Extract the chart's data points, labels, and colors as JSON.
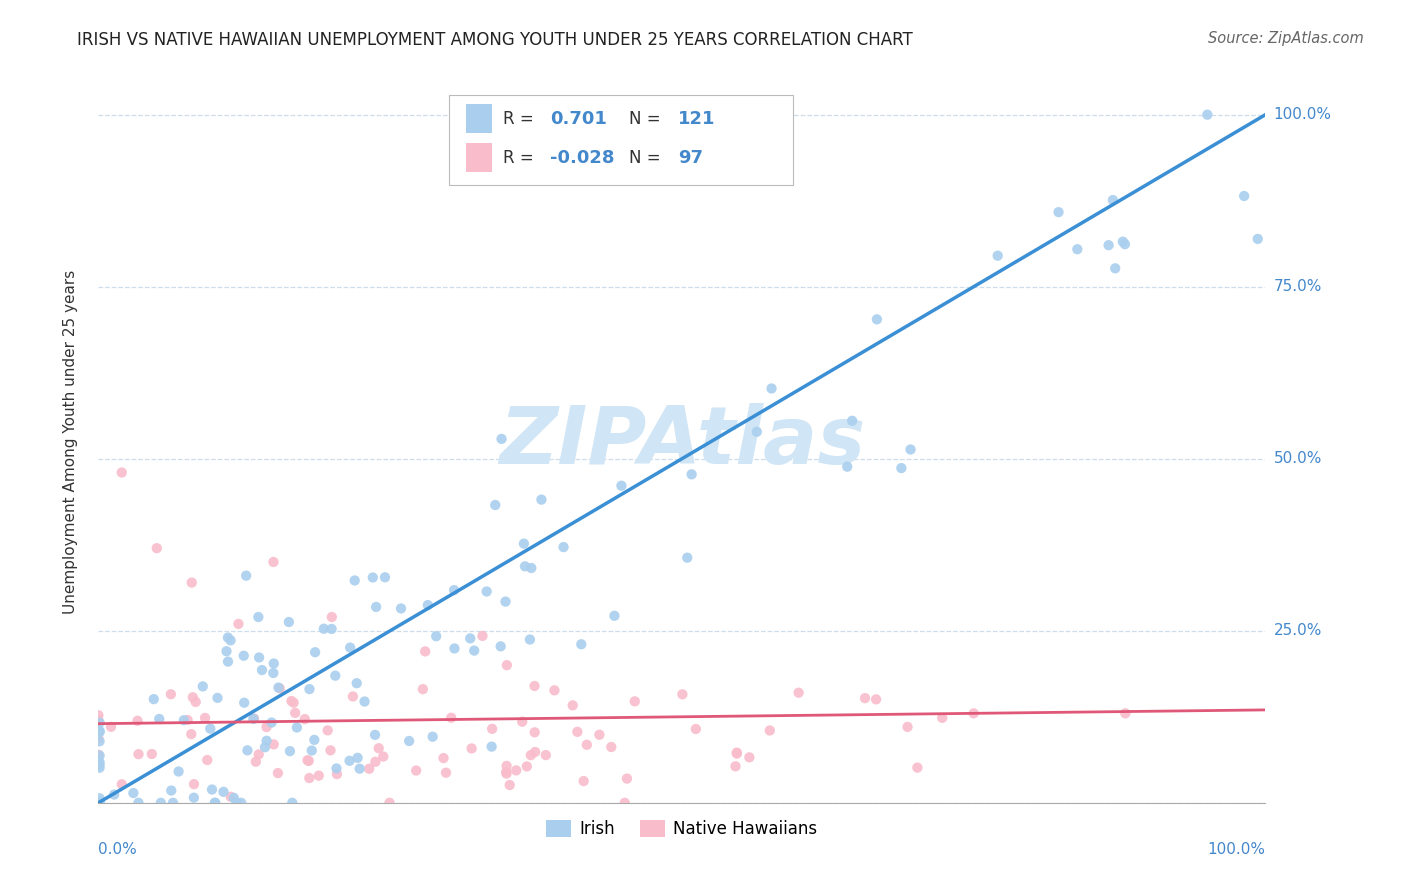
{
  "title": "IRISH VS NATIVE HAWAIIAN UNEMPLOYMENT AMONG YOUTH UNDER 25 YEARS CORRELATION CHART",
  "source": "Source: ZipAtlas.com",
  "ylabel": "Unemployment Among Youth under 25 years",
  "irish_R": 0.701,
  "irish_N": 121,
  "hawaiian_R": -0.028,
  "hawaiian_N": 97,
  "irish_color": "#aacfee",
  "hawaiian_color": "#f9bccb",
  "irish_line_color": "#3b8fd4",
  "hawaiian_line_color": "#e05878",
  "legend_label_irish": "Irish",
  "legend_label_hawaiian": "Native Hawaiians",
  "background_color": "#ffffff",
  "watermark_color": "#d0e5f5",
  "title_color": "#222222",
  "source_color": "#666666",
  "tick_color": "#4488cc",
  "grid_color": "#ccddee",
  "ytick_labels": [
    "25.0%",
    "50.0%",
    "75.0%",
    "100.0%"
  ],
  "ytick_vals": [
    0.25,
    0.5,
    0.75,
    1.0
  ]
}
